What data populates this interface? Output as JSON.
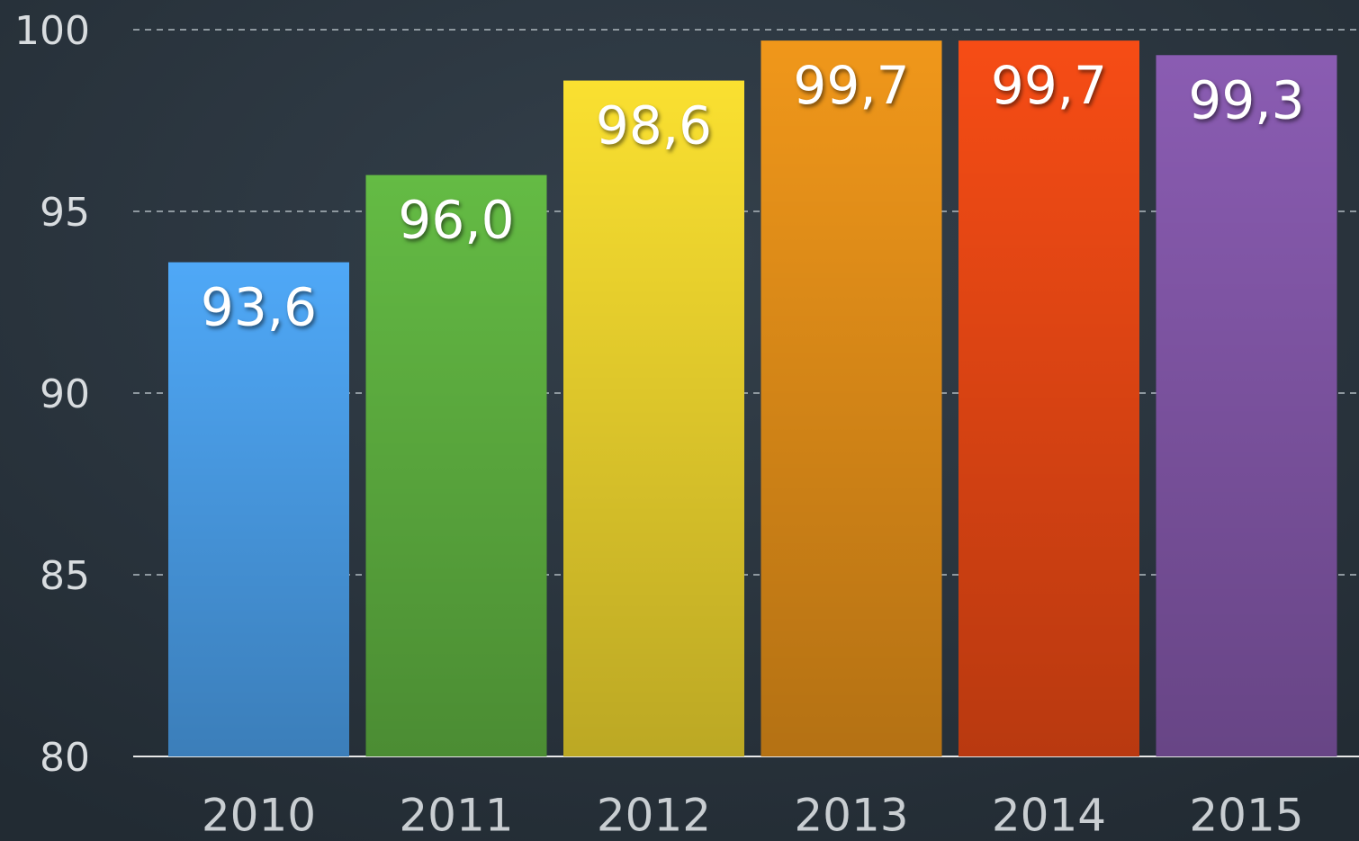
{
  "chart_data": {
    "type": "bar",
    "categories": [
      "2010",
      "2011",
      "2012",
      "2013",
      "2014",
      "2015"
    ],
    "values": [
      93.6,
      96.0,
      98.6,
      99.7,
      99.7,
      99.3
    ],
    "value_labels": [
      "93,6",
      "96,0",
      "98,6",
      "99,7",
      "99,7",
      "99,3"
    ],
    "colors": [
      "#4fa8f7",
      "#64bb44",
      "#fae030",
      "#f0971a",
      "#f64c15",
      "#8a5cb2"
    ],
    "ylim": [
      80,
      100
    ],
    "yticks": [
      80,
      85,
      90,
      95,
      100
    ],
    "grid": true
  }
}
